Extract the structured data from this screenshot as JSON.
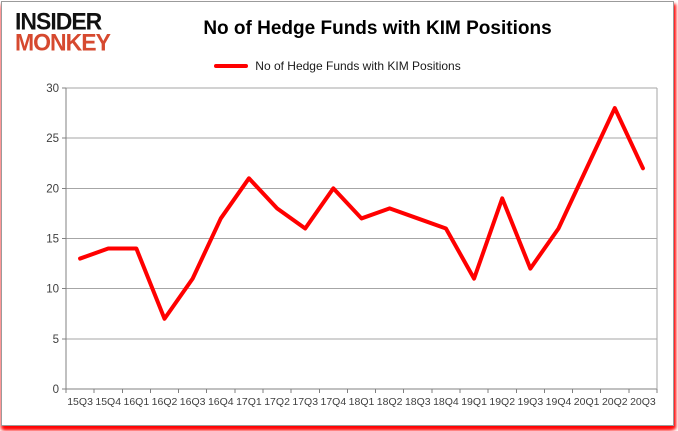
{
  "branding": {
    "logo_line1": "INSIDER",
    "logo_line2": "MONKEY"
  },
  "title": "No of Hedge Funds with KIM Positions",
  "legend": {
    "label": "No of Hedge Funds with KIM Positions"
  },
  "colors": {
    "line": "#ff0000",
    "logo_red": "#d6492f",
    "logo_black": "#111111",
    "grid": "#a6a6a6",
    "axis": "#808080",
    "tick_text": "#3f3f3f",
    "frame_shadow": "#ff0000"
  },
  "chart_data": {
    "type": "line",
    "title": "No of Hedge Funds with KIM Positions",
    "categories": [
      "15Q3",
      "15Q4",
      "16Q1",
      "16Q2",
      "16Q3",
      "16Q4",
      "17Q1",
      "17Q2",
      "17Q3",
      "17Q4",
      "18Q1",
      "18Q2",
      "18Q3",
      "18Q4",
      "19Q1",
      "19Q2",
      "19Q3",
      "19Q4",
      "20Q1",
      "20Q2",
      "20Q3"
    ],
    "series": [
      {
        "name": "No of Hedge Funds with KIM Positions",
        "color": "#ff0000",
        "values": [
          13,
          14,
          14,
          7,
          11,
          17,
          21,
          18,
          16,
          20,
          17,
          18,
          17,
          16,
          11,
          19,
          12,
          16,
          22,
          28,
          22
        ]
      }
    ],
    "xlabel": "",
    "ylabel": "",
    "ylim": [
      0,
      30
    ],
    "ytick_interval": 5,
    "grid": true,
    "legend_position": "top-center"
  }
}
